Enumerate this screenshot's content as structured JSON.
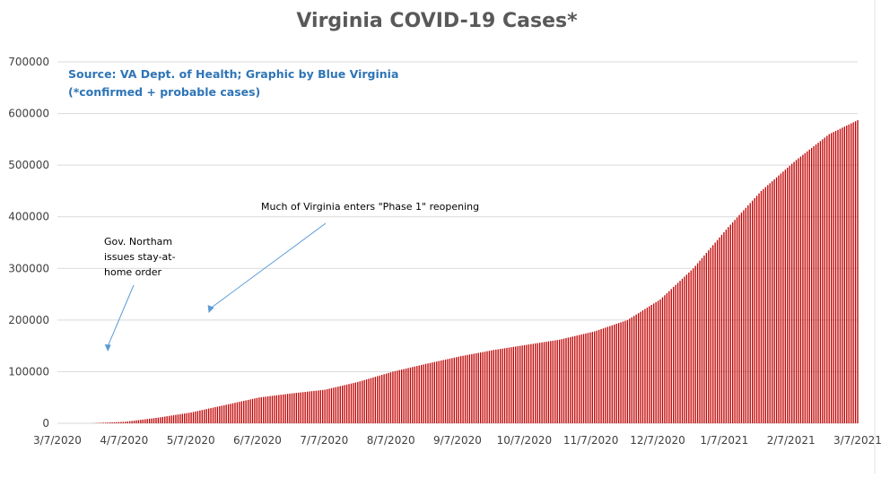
{
  "chart_data": {
    "type": "bar",
    "title": "Virginia COVID-19 Cases*",
    "source_line1": "Source: VA Dept. of Health; Graphic by Blue Virginia",
    "source_line2": "(*confirmed + probable cases)",
    "bar_color": "#c00000",
    "accent_color": "#2e75b6",
    "grid": true,
    "ylim": [
      0,
      700000
    ],
    "y_ticks": [
      "0",
      "100000",
      "200000",
      "300000",
      "400000",
      "500000",
      "600000",
      "700000"
    ],
    "x_tick_labels": [
      "3/7/2020",
      "4/7/2020",
      "5/7/2020",
      "6/7/2020",
      "7/7/2020",
      "8/7/2020",
      "9/7/2020",
      "10/7/2020",
      "11/7/2020",
      "12/7/2020",
      "1/7/2021",
      "2/7/2021",
      "3/7/2021"
    ],
    "x_range": [
      "2020-03-07",
      "2021-03-07"
    ],
    "series_dates": [
      "2020-03-07",
      "2020-03-22",
      "2020-04-07",
      "2020-04-22",
      "2020-05-07",
      "2020-05-22",
      "2020-06-07",
      "2020-06-22",
      "2020-07-07",
      "2020-07-22",
      "2020-08-07",
      "2020-08-22",
      "2020-09-07",
      "2020-09-22",
      "2020-10-07",
      "2020-10-22",
      "2020-11-07",
      "2020-11-22",
      "2020-12-07",
      "2020-12-22",
      "2021-01-07",
      "2021-01-22",
      "2021-02-07",
      "2021-02-22",
      "2021-03-07"
    ],
    "series_values": [
      0,
      0,
      3000,
      11000,
      21000,
      35000,
      50000,
      58000,
      65000,
      80000,
      100000,
      115000,
      130000,
      142000,
      152000,
      162000,
      178000,
      200000,
      240000,
      300000,
      380000,
      450000,
      510000,
      560000,
      587000
    ],
    "annotations": [
      {
        "text_lines": [
          "Gov. Northam",
          "issues stay-at-",
          "home order"
        ],
        "date": "2020-03-30"
      },
      {
        "text_lines": [
          "Much of Virginia enters \"Phase 1\" reopening"
        ],
        "date": "2020-05-15"
      }
    ]
  }
}
